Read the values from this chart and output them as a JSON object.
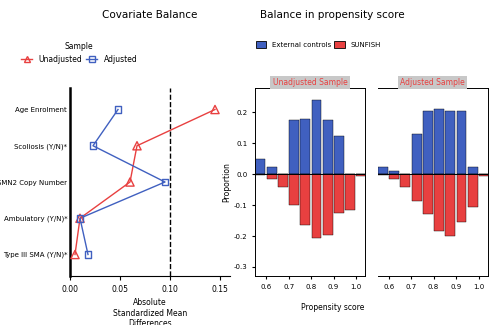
{
  "left_title": "Covariate Balance",
  "right_title": "Balance in propensity score",
  "covariates": [
    "Age Enrolment",
    "Scoliosis (Y/N)*",
    "SMN2 Copy Number",
    "Ambulatory (Y/N)*",
    "Type III SMA (Y/N)*"
  ],
  "unadjusted_values": [
    0.145,
    0.067,
    0.06,
    0.01,
    0.005
  ],
  "adjusted_values": [
    0.048,
    0.023,
    0.095,
    0.01,
    0.018
  ],
  "dashed_line_x": 0.1,
  "xlim": [
    0.0,
    0.16
  ],
  "xticks": [
    0.0,
    0.05,
    0.1,
    0.15
  ],
  "red_color": "#e84040",
  "blue_color": "#4060c0",
  "legend_sample_label": "Sample",
  "legend_unadjusted_label": "Unadjusted",
  "legend_adjusted_label": "Adjusted",
  "legend_ext_controls": "External controls",
  "legend_sunfish": "SUNFISH",
  "xlabel_left": "Absolute\nStandardized Mean\nDifferences",
  "ylabel_right": "Proportion",
  "xlabel_right": "Propensity score",
  "unadj_panel_label": "Unadjusted Sample",
  "adj_panel_label": "Adjusted Sample",
  "ps_bins_left": [
    0.55,
    0.6,
    0.65,
    0.7,
    0.75,
    0.8,
    0.85,
    0.9,
    0.95,
    1.0
  ],
  "unadj_blue": [
    0.05,
    0.025,
    0.0,
    0.175,
    0.18,
    0.24,
    0.175,
    0.125,
    0.0,
    0.0
  ],
  "unadj_red": [
    -0.003,
    -0.015,
    -0.04,
    -0.1,
    -0.165,
    -0.205,
    -0.195,
    -0.125,
    -0.115,
    -0.005
  ],
  "adj_blue": [
    0.025,
    0.012,
    0.0,
    0.13,
    0.205,
    0.21,
    0.205,
    0.205,
    0.025,
    0.0
  ],
  "adj_red": [
    -0.003,
    -0.015,
    -0.04,
    -0.085,
    -0.13,
    -0.185,
    -0.2,
    -0.155,
    -0.105,
    -0.005
  ],
  "ps_yticks": [
    -0.3,
    -0.2,
    -0.1,
    0.0,
    0.1,
    0.2
  ],
  "ps_ylim": [
    -0.33,
    0.28
  ],
  "ps_xlim": [
    0.55,
    1.04
  ],
  "ps_xticks": [
    0.6,
    0.7,
    0.8,
    0.9,
    1.0
  ],
  "bar_width": 0.048,
  "header_gray": "#c8c8c8"
}
